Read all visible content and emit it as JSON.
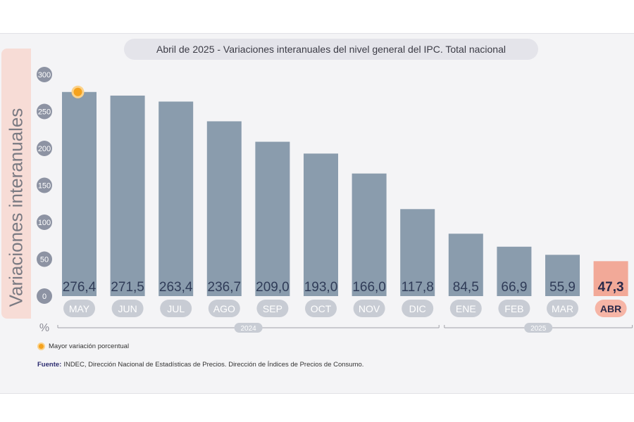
{
  "title": "Abril de 2025 - Variaciones interanuales del nivel general del IPC. Total nacional",
  "ylabel": "Variaciones interanuales",
  "unit_label": "%",
  "legend": {
    "label": "Mayor variación porcentual",
    "icon": "orange-dot-icon"
  },
  "source": {
    "prefix": "Fuente:",
    "text": "INDEC, Dirección Nacional de Estadísticas de Precios. Dirección de Índices de Precios de Consumo."
  },
  "colors": {
    "bar": "#8a9cad",
    "highlight_bar": "#f2a998",
    "highlight_pill": "#f6b5a6",
    "month_pill": "#c8ccd4",
    "tick_circle": "#8d93a3",
    "marker": "#f5a21d"
  },
  "chart_data": {
    "type": "bar",
    "categories": [
      "MAY",
      "JUN",
      "JUL",
      "AGO",
      "SEP",
      "OCT",
      "NOV",
      "DIC",
      "ENE",
      "FEB",
      "MAR",
      "ABR"
    ],
    "values": [
      276.4,
      271.5,
      263.4,
      236.7,
      209.0,
      193.0,
      166.0,
      117.8,
      84.5,
      66.9,
      55.9,
      47.3
    ],
    "value_labels": [
      "276,4",
      "271,5",
      "263,4",
      "236,7",
      "209,0",
      "193,0",
      "166,0",
      "117,8",
      "84,5",
      "66,9",
      "55,9",
      "47,3"
    ],
    "yticks": [
      0,
      50,
      100,
      150,
      200,
      250,
      300
    ],
    "ylim": [
      0,
      300
    ],
    "year_groups": [
      {
        "label": "2024",
        "from": 0,
        "to": 7
      },
      {
        "label": "2025",
        "from": 8,
        "to": 11
      }
    ],
    "highlight_index": 11,
    "max_marker_index": 0
  }
}
